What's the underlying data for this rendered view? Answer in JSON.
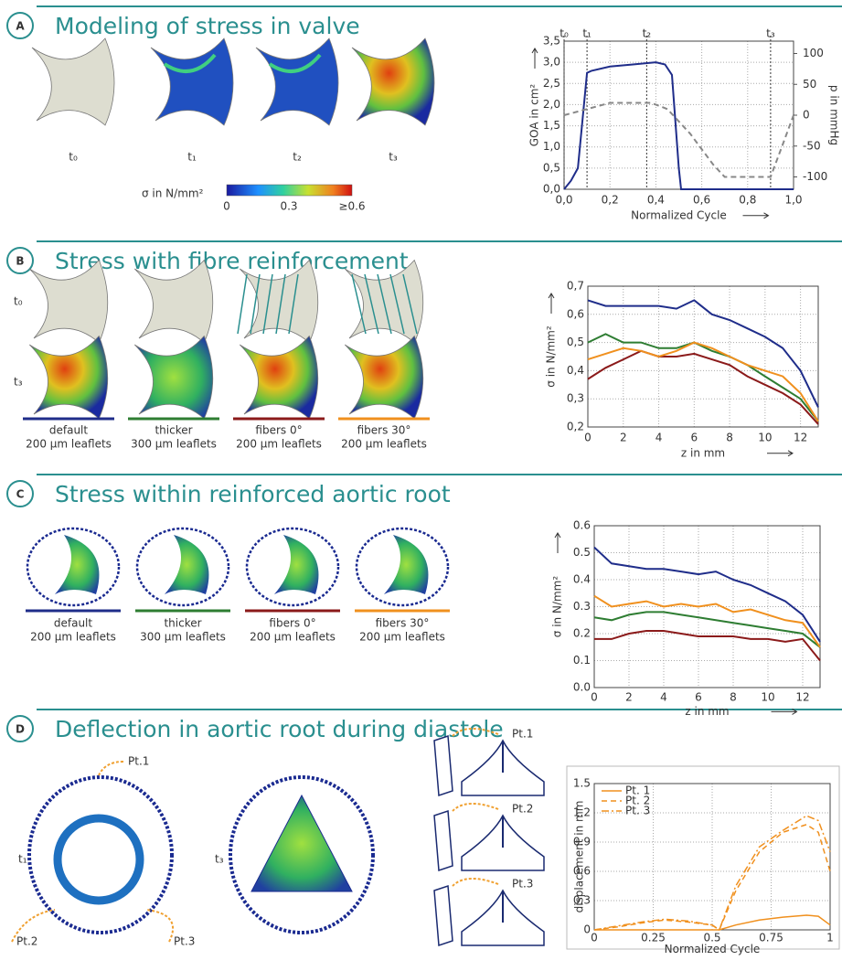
{
  "panels": [
    {
      "label": "A",
      "title": "Modeling of stress in valve",
      "images": [
        "t₀",
        "t₁",
        "t₂",
        "t₃"
      ],
      "colorbar": {
        "label": "σ in N/mm²",
        "ticks": [
          "0",
          "0.3",
          "≥0.6"
        ]
      }
    },
    {
      "label": "B",
      "title": "Stress with fibre reinforcement",
      "rows": [
        "t₀",
        "t₃"
      ],
      "captions": [
        {
          "name": "default",
          "detail": "200 µm leaflets"
        },
        {
          "name": "thicker",
          "detail": "300 µm leaflets"
        },
        {
          "name": "fibers 0°",
          "detail": "200 µm leaflets"
        },
        {
          "name": "fibers 30°",
          "detail": "200 µm leaflets"
        }
      ]
    },
    {
      "label": "C",
      "title": "Stress within reinforced aortic root",
      "captions": [
        {
          "name": "default",
          "detail": "200 µm leaflets"
        },
        {
          "name": "thicker",
          "detail": "300 µm leaflets"
        },
        {
          "name": "fibers 0°",
          "detail": "200 µm leaflets"
        },
        {
          "name": "fibers 30°",
          "detail": "200 µm leaflets"
        }
      ]
    },
    {
      "label": "D",
      "title": "Deflection in aortic root during diastole",
      "images": [
        "t₁",
        "t₃"
      ],
      "points": [
        "Pt.1",
        "Pt.2",
        "Pt.3"
      ],
      "profile_points": [
        "Pt.1",
        "Pt.2",
        "Pt.3"
      ]
    }
  ],
  "chart_data": [
    {
      "type": "line",
      "x_label": "Normalized Cycle",
      "y_label": "GOA in cm²",
      "y2_label": "p in mmHg",
      "grid": true,
      "xlim": [
        0,
        1
      ],
      "xticks": [
        {
          "value": 0,
          "label": "0,0"
        },
        {
          "value": 0.2,
          "label": "0,2"
        },
        {
          "value": 0.4,
          "label": "0,4"
        },
        {
          "value": 0.6,
          "label": "0,6"
        },
        {
          "value": 0.8,
          "label": "0,8"
        },
        {
          "value": 1,
          "label": "1,0"
        }
      ],
      "ylim": [
        0,
        3.5
      ],
      "yticks": [
        {
          "value": 0,
          "label": "0,0"
        },
        {
          "value": 0.5,
          "label": "0,5"
        },
        {
          "value": 1,
          "label": "1,0"
        },
        {
          "value": 1.5,
          "label": "1,5"
        },
        {
          "value": 2,
          "label": "2,0"
        },
        {
          "value": 2.5,
          "label": "2,5"
        },
        {
          "value": 3,
          "label": "3,0"
        },
        {
          "value": 3.5,
          "label": "3,5"
        }
      ],
      "y2lim": [
        -120,
        120
      ],
      "y2ticks": [
        -100,
        -50,
        0,
        50,
        100
      ],
      "time_markers": [
        {
          "value": 0,
          "label": "t₀"
        },
        {
          "value": 0.1,
          "label": "t₁"
        },
        {
          "value": 0.36,
          "label": "t₂"
        },
        {
          "value": 0.9,
          "label": "t₃"
        }
      ],
      "series": [
        {
          "color": "#1f2d8a",
          "x": [
            0,
            0.03,
            0.06,
            0.1,
            0.12,
            0.2,
            0.3,
            0.4,
            0.44,
            0.47,
            0.5,
            0.51,
            0.6,
            1.0
          ],
          "values": [
            0,
            0.2,
            0.5,
            2.75,
            2.8,
            2.9,
            2.95,
            3.0,
            2.95,
            2.7,
            0.5,
            0,
            0,
            0
          ]
        },
        {
          "color": "#888888",
          "style": "dashed",
          "axis": "y2",
          "x": [
            0,
            0.1,
            0.2,
            0.3,
            0.38,
            0.45,
            0.55,
            0.65,
            0.7,
            0.9,
            0.95,
            1.0
          ],
          "values": [
            0,
            10,
            20,
            20,
            20,
            10,
            -30,
            -80,
            -100,
            -100,
            -50,
            0
          ]
        }
      ]
    },
    {
      "type": "line",
      "x_label": "z in mm",
      "y_label": "σ in N/mm²",
      "grid": true,
      "xlim": [
        0,
        13
      ],
      "xticks": [
        0,
        2,
        4,
        6,
        8,
        10,
        12
      ],
      "ylim": [
        0.2,
        0.7
      ],
      "yticks": [
        {
          "value": 0.2,
          "label": "0,2"
        },
        {
          "value": 0.3,
          "label": "0,3"
        },
        {
          "value": 0.4,
          "label": "0,4"
        },
        {
          "value": 0.5,
          "label": "0,5"
        },
        {
          "value": 0.6,
          "label": "0,6"
        },
        {
          "value": 0.7,
          "label": "0,7"
        }
      ],
      "x": [
        0,
        1,
        2,
        3,
        4,
        5,
        6,
        7,
        8,
        9,
        10,
        11,
        12,
        13
      ],
      "series": [
        {
          "color": "#1f2d8a",
          "values": [
            0.65,
            0.63,
            0.63,
            0.63,
            0.63,
            0.62,
            0.65,
            0.6,
            0.58,
            0.55,
            0.52,
            0.48,
            0.4,
            0.27
          ]
        },
        {
          "color": "#2e7d32",
          "values": [
            0.5,
            0.53,
            0.5,
            0.5,
            0.48,
            0.48,
            0.5,
            0.47,
            0.45,
            0.42,
            0.38,
            0.34,
            0.3,
            0.22
          ]
        },
        {
          "color": "#8b1a1a",
          "values": [
            0.37,
            0.41,
            0.44,
            0.47,
            0.45,
            0.45,
            0.46,
            0.44,
            0.42,
            0.38,
            0.35,
            0.32,
            0.28,
            0.21
          ]
        },
        {
          "color": "#f0901e",
          "values": [
            0.44,
            0.46,
            0.48,
            0.47,
            0.45,
            0.47,
            0.5,
            0.48,
            0.45,
            0.42,
            0.4,
            0.38,
            0.32,
            0.22
          ]
        }
      ]
    },
    {
      "type": "line",
      "x_label": "z in mm",
      "y_label": "σ in N/mm²",
      "grid": true,
      "xlim": [
        0,
        13
      ],
      "xticks": [
        0,
        2,
        4,
        6,
        8,
        10,
        12
      ],
      "ylim": [
        0,
        0.6
      ],
      "yticks": [
        {
          "value": 0,
          "label": "0.0"
        },
        0.1,
        0.2,
        0.3,
        0.4,
        0.5,
        0.6
      ],
      "x": [
        0,
        1,
        2,
        3,
        4,
        5,
        6,
        7,
        8,
        9,
        10,
        11,
        12,
        13
      ],
      "series": [
        {
          "color": "#1f2d8a",
          "values": [
            0.52,
            0.46,
            0.45,
            0.44,
            0.44,
            0.43,
            0.42,
            0.43,
            0.4,
            0.38,
            0.35,
            0.32,
            0.27,
            0.17
          ]
        },
        {
          "color": "#2e7d32",
          "values": [
            0.26,
            0.25,
            0.27,
            0.28,
            0.28,
            0.27,
            0.26,
            0.25,
            0.24,
            0.23,
            0.22,
            0.21,
            0.2,
            0.15
          ]
        },
        {
          "color": "#8b1a1a",
          "values": [
            0.18,
            0.18,
            0.2,
            0.21,
            0.21,
            0.2,
            0.19,
            0.19,
            0.19,
            0.18,
            0.18,
            0.17,
            0.18,
            0.1
          ]
        },
        {
          "color": "#f0901e",
          "values": [
            0.34,
            0.3,
            0.31,
            0.32,
            0.3,
            0.31,
            0.3,
            0.31,
            0.28,
            0.29,
            0.27,
            0.25,
            0.24,
            0.15
          ]
        }
      ]
    },
    {
      "type": "line",
      "x_label": "Normalized Cycle",
      "y_label": "displacement in mm",
      "grid": true,
      "legend": "upper left",
      "xlim": [
        0,
        1
      ],
      "xticks": [
        0,
        0.25,
        0.5,
        0.75,
        1
      ],
      "ylim": [
        0,
        1.5
      ],
      "yticks": [
        0,
        0.3,
        0.6,
        0.9,
        1.2,
        1.5
      ],
      "x": [
        0,
        0.1,
        0.2,
        0.3,
        0.4,
        0.5,
        0.53,
        0.6,
        0.7,
        0.8,
        0.9,
        0.95,
        1.0
      ],
      "series": [
        {
          "name": "Pt. 1",
          "color": "#f0901e",
          "style": "solid",
          "values": [
            0,
            0,
            0,
            0,
            0,
            0,
            0,
            0.05,
            0.1,
            0.13,
            0.15,
            0.14,
            0.05
          ]
        },
        {
          "name": "Pt. 2",
          "color": "#f0901e",
          "style": "dashed",
          "values": [
            0,
            0.03,
            0.07,
            0.1,
            0.08,
            0.05,
            0,
            0.4,
            0.8,
            1.0,
            1.08,
            1.0,
            0.6
          ]
        },
        {
          "name": "Pt. 3",
          "color": "#f0901e",
          "style": "dashdot",
          "values": [
            0,
            0.04,
            0.08,
            0.11,
            0.09,
            0.05,
            0,
            0.45,
            0.85,
            1.02,
            1.17,
            1.12,
            0.8
          ]
        }
      ]
    }
  ]
}
